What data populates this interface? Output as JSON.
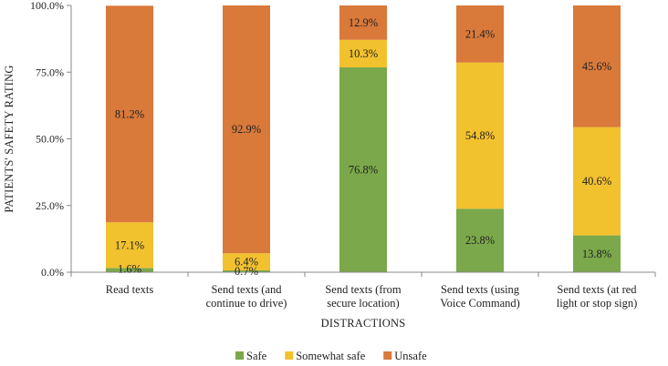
{
  "chart_data": {
    "type": "bar",
    "stacked": true,
    "title": "",
    "xlabel": "DISTRACTIONS",
    "ylabel": "PATIENTS' SAFETY RATING",
    "ylim": [
      0,
      100
    ],
    "yticks": [
      "0.0%",
      "25.0%",
      "50.0%",
      "75.0%",
      "100.0%"
    ],
    "categories": [
      [
        "Read texts"
      ],
      [
        "Send texts (and",
        "continue to drive)"
      ],
      [
        "Send texts (from",
        "secure location)"
      ],
      [
        "Send texts (using",
        "Voice Command)"
      ],
      [
        "Send texts (at red",
        "light or stop sign)"
      ]
    ],
    "series": [
      {
        "name": "Safe",
        "color": "#7BA84A",
        "values": [
          1.6,
          0.7,
          76.8,
          23.8,
          13.8
        ],
        "labels": [
          "1.6%",
          "0.7%",
          "76.8%",
          "23.8%",
          "13.8%"
        ]
      },
      {
        "name": "Somewhat safe",
        "color": "#F2C12E",
        "values": [
          17.1,
          6.4,
          10.3,
          54.8,
          40.6
        ],
        "labels": [
          "17.1%",
          "6.4%",
          "10.3%",
          "54.8%",
          "40.6%"
        ]
      },
      {
        "name": "Unsafe",
        "color": "#D9793A",
        "values": [
          81.2,
          92.9,
          12.9,
          21.4,
          45.6
        ],
        "labels": [
          "81.2%",
          "92.9%",
          "12.9%",
          "21.4%",
          "45.6%"
        ]
      }
    ],
    "legend_position": "bottom"
  }
}
